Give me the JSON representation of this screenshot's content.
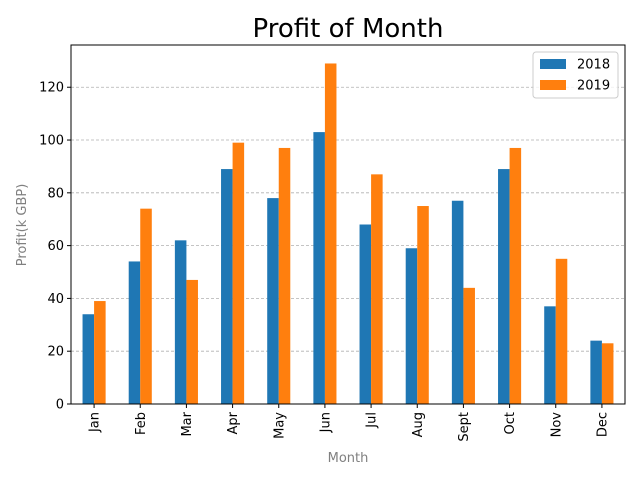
{
  "chart_data": {
    "type": "bar",
    "title": "Profit of Month",
    "xlabel": "Month",
    "ylabel": "Profit(k GBP)",
    "categories": [
      "Jan",
      "Feb",
      "Mar",
      "Apr",
      "May",
      "Jun",
      "Jul",
      "Aug",
      "Sept",
      "Oct",
      "Nov",
      "Dec"
    ],
    "series": [
      {
        "name": "2018",
        "color": "#1f77b4",
        "values": [
          34,
          54,
          62,
          89,
          78,
          103,
          68,
          59,
          77,
          89,
          37,
          24
        ]
      },
      {
        "name": "2019",
        "color": "#ff7f0e",
        "values": [
          39,
          74,
          47,
          99,
          97,
          129,
          87,
          75,
          44,
          97,
          55,
          23
        ]
      }
    ],
    "ylim": [
      0,
      136
    ],
    "yticks": [
      0,
      20,
      40,
      60,
      80,
      100,
      120
    ],
    "grid": "y-dashed",
    "legend": "top-right"
  }
}
